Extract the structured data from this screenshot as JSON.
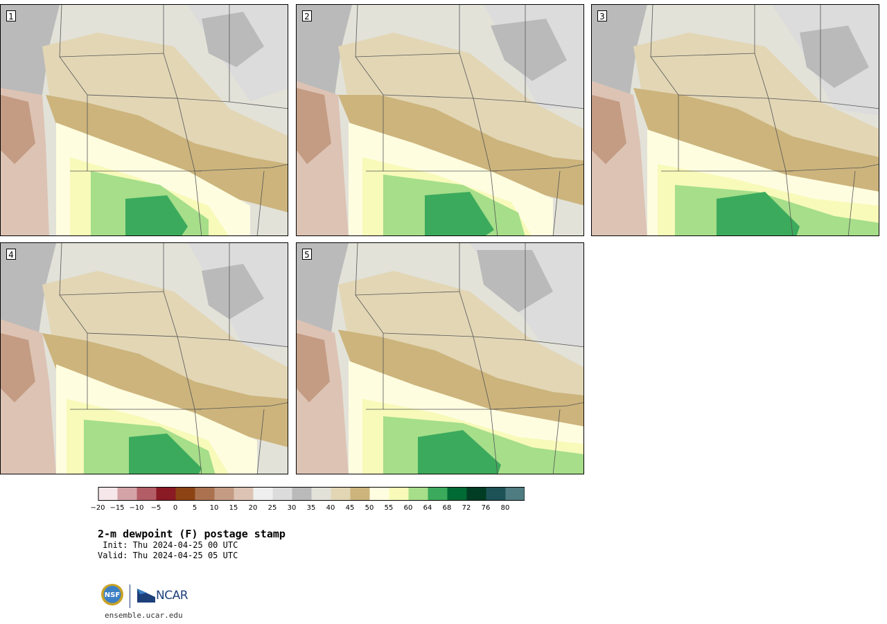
{
  "panels": [
    {
      "label": "1"
    },
    {
      "label": "2"
    },
    {
      "label": "3"
    },
    {
      "label": "4"
    },
    {
      "label": "5"
    }
  ],
  "colorbar": {
    "ticks": [
      "−20",
      "−15",
      "−10",
      "−5",
      "0",
      "5",
      "10",
      "15",
      "20",
      "25",
      "30",
      "35",
      "40",
      "45",
      "50",
      "55",
      "60",
      "64",
      "68",
      "72",
      "76",
      "80"
    ],
    "colors": [
      "#f6e8ea",
      "#d4a3a8",
      "#b35d66",
      "#8a1a24",
      "#8c4414",
      "#ab7250",
      "#c49c83",
      "#ddc3b4",
      "#efefef",
      "#dcdcdc",
      "#bababa",
      "#e2e2d9",
      "#e2d6b5",
      "#ccb47c",
      "#fffde0",
      "#f7fab9",
      "#a6de8a",
      "#3caa5c",
      "#006b34",
      "#003d24",
      "#1d5357",
      "#4f7c80"
    ]
  },
  "title": "2-m dewpoint (F) postage stamp",
  "init": " Init: Thu 2024-04-25 00 UTC",
  "valid": "Valid: Thu 2024-04-25 05 UTC",
  "logos": {
    "nsf": "NSF",
    "ncar": "NCAR"
  },
  "site": "ensemble.ucar.edu"
}
